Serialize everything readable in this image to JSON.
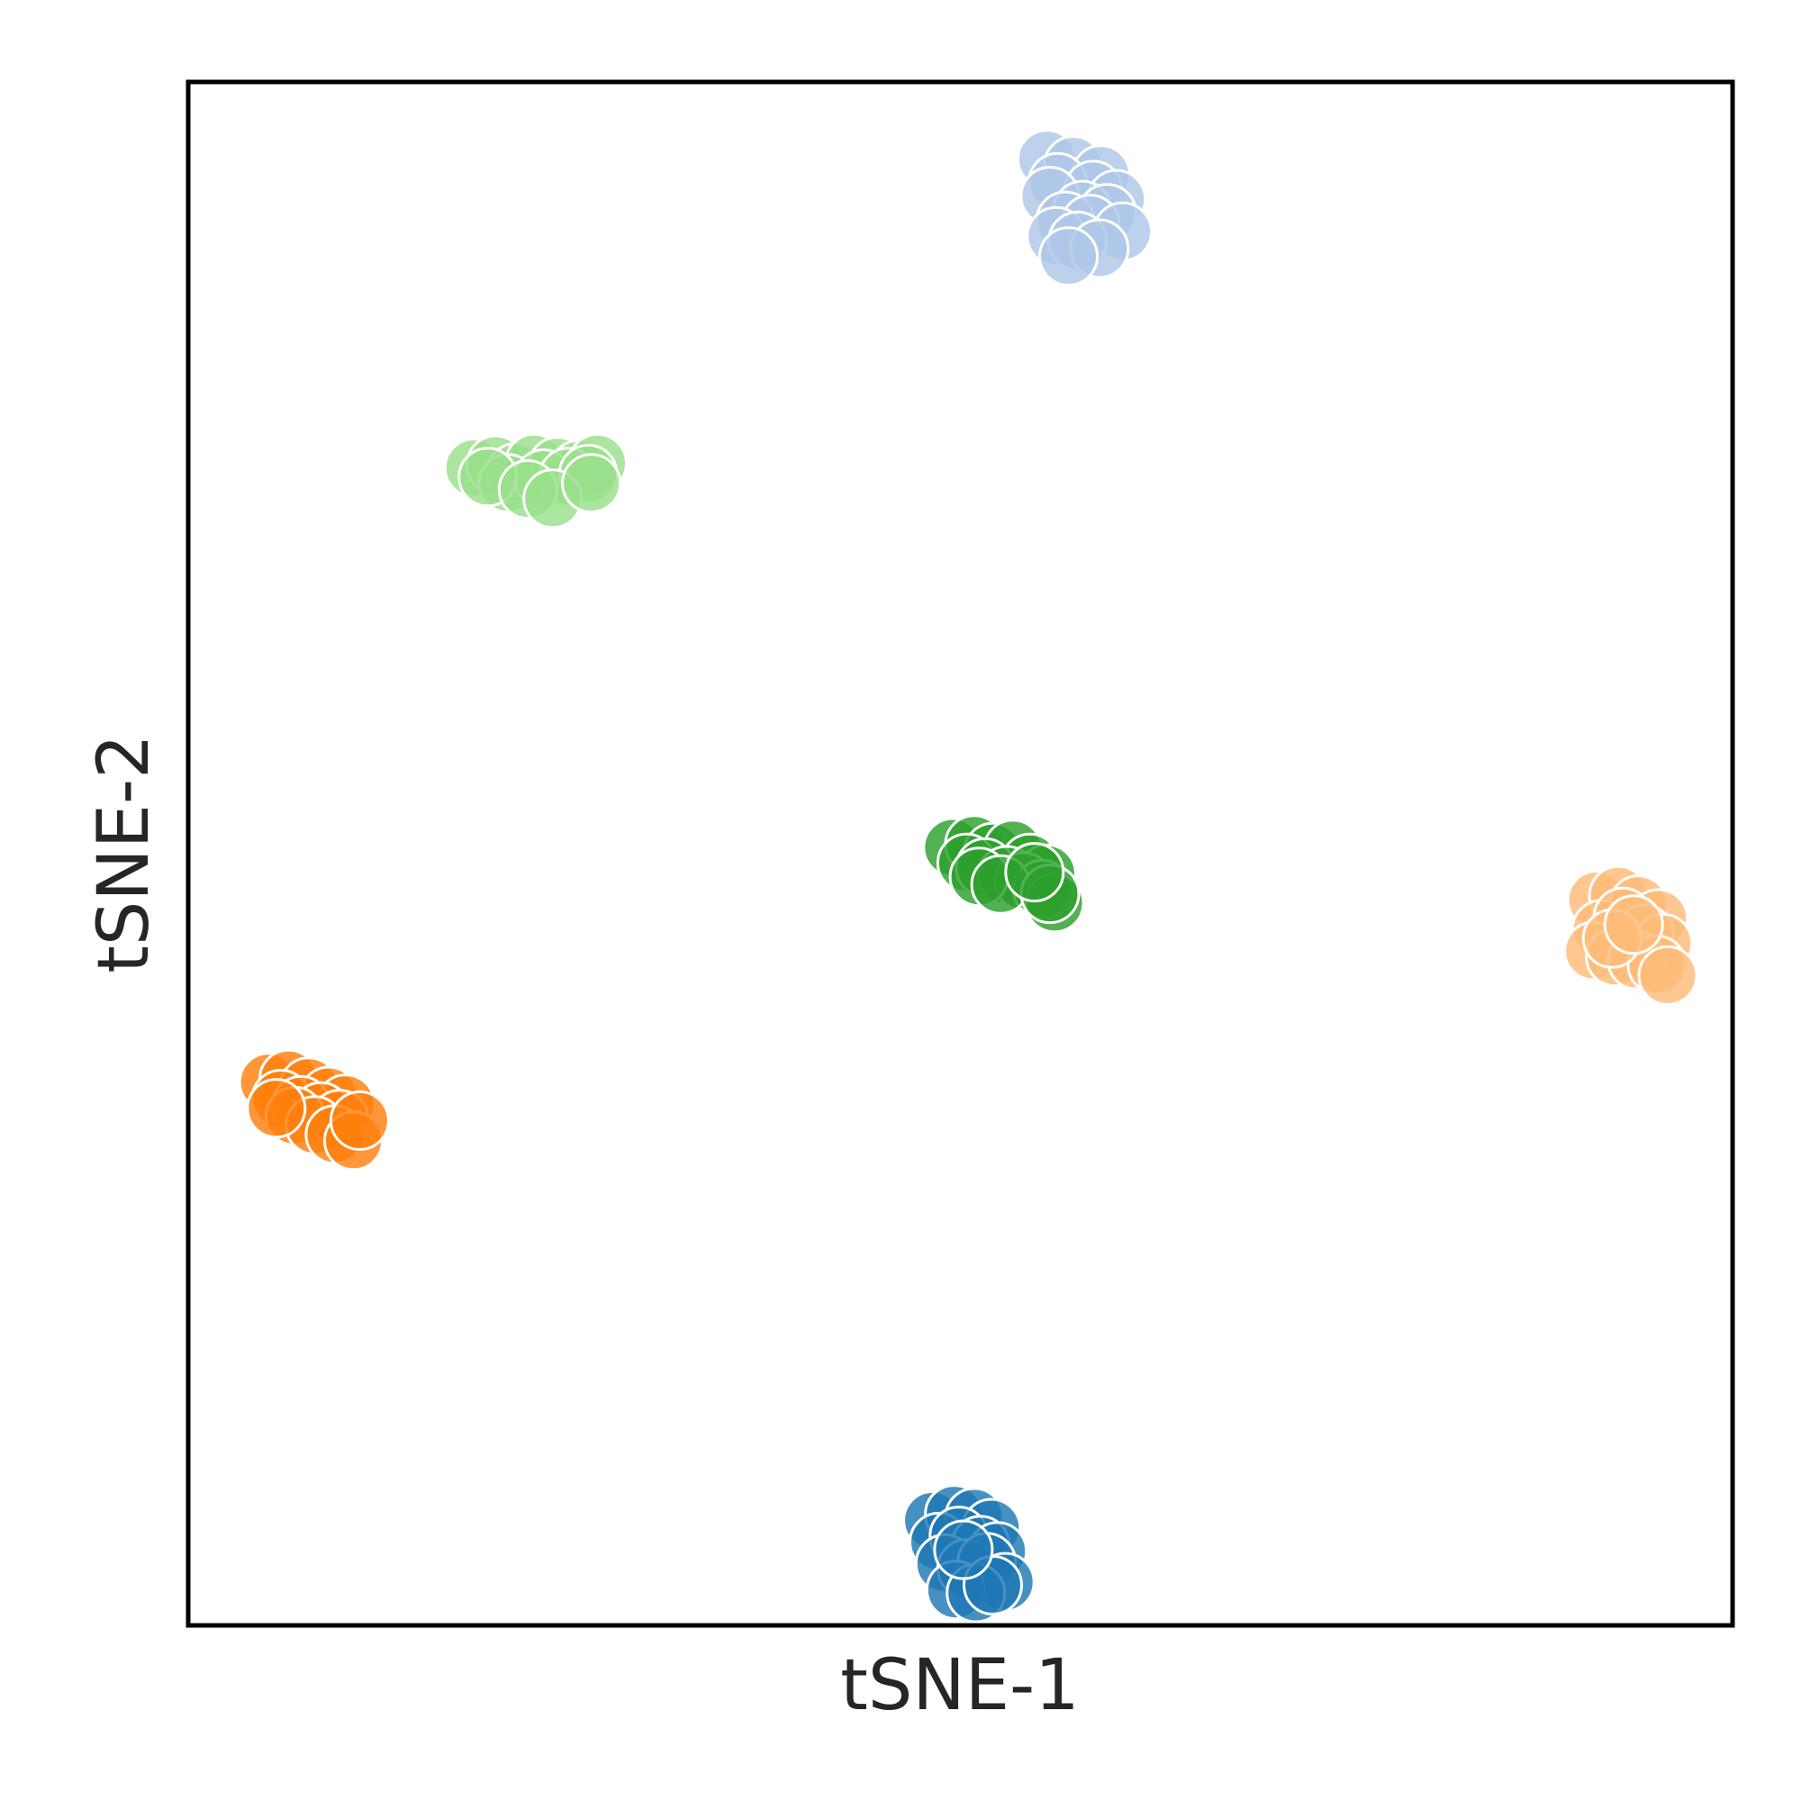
{
  "chart_data": {
    "type": "scatter",
    "title": "",
    "xlabel": "tSNE-1",
    "ylabel": "tSNE-2",
    "xlim": [
      -50,
      50
    ],
    "ylim": [
      -50,
      50
    ],
    "grid": false,
    "ticks": false,
    "marker_opacity": 0.82,
    "series": [
      {
        "color": "#aec7e8",
        "points": [
          [
            5.6,
            45.0
          ],
          [
            7.3,
            44.6
          ],
          [
            9.1,
            44.0
          ],
          [
            6.3,
            43.5
          ],
          [
            8.6,
            43.0
          ],
          [
            10.1,
            42.4
          ],
          [
            5.8,
            42.6
          ],
          [
            7.9,
            41.7
          ],
          [
            9.5,
            41.5
          ],
          [
            6.8,
            41.0
          ],
          [
            8.4,
            40.8
          ],
          [
            10.5,
            40.3
          ],
          [
            6.2,
            40.0
          ],
          [
            7.6,
            39.7
          ],
          [
            9.0,
            39.2
          ],
          [
            7.0,
            38.7
          ]
        ]
      },
      {
        "color": "#98df8a",
        "points": [
          [
            -31.5,
            25.0
          ],
          [
            -30.1,
            25.2
          ],
          [
            -28.8,
            24.7
          ],
          [
            -27.6,
            25.3
          ],
          [
            -26.1,
            25.1
          ],
          [
            -24.7,
            24.9
          ],
          [
            -23.5,
            25.3
          ],
          [
            -29.3,
            24.0
          ],
          [
            -27.0,
            24.3
          ],
          [
            -25.4,
            24.4
          ],
          [
            -24.1,
            24.6
          ],
          [
            -30.6,
            24.4
          ],
          [
            -28.0,
            23.6
          ],
          [
            -26.4,
            23.0
          ],
          [
            -23.9,
            24.0
          ]
        ]
      },
      {
        "color": "#2ca02c",
        "points": [
          [
            -0.5,
            0.4
          ],
          [
            0.9,
            0.6
          ],
          [
            2.1,
            0.1
          ],
          [
            3.4,
            0.3
          ],
          [
            4.5,
            -0.6
          ],
          [
            5.6,
            -1.3
          ],
          [
            0.4,
            -0.6
          ],
          [
            1.6,
            -0.9
          ],
          [
            3.0,
            -1.4
          ],
          [
            4.1,
            -1.8
          ],
          [
            5.3,
            -2.3
          ],
          [
            6.1,
            -3.2
          ],
          [
            1.2,
            -1.5
          ],
          [
            2.6,
            -2.0
          ],
          [
            5.8,
            -2.6
          ],
          [
            4.8,
            -1.2
          ]
        ]
      },
      {
        "color": "#ffbb78",
        "points": [
          [
            41.2,
            -3.0
          ],
          [
            42.6,
            -2.7
          ],
          [
            43.9,
            -3.3
          ],
          [
            45.2,
            -4.2
          ],
          [
            41.5,
            -4.9
          ],
          [
            42.9,
            -4.1
          ],
          [
            44.3,
            -5.2
          ],
          [
            45.5,
            -5.8
          ],
          [
            41.0,
            -6.3
          ],
          [
            42.4,
            -6.7
          ],
          [
            43.8,
            -6.9
          ],
          [
            45.1,
            -7.2
          ],
          [
            45.8,
            -7.9
          ],
          [
            42.2,
            -5.5
          ],
          [
            43.6,
            -4.6
          ]
        ]
      },
      {
        "color": "#ff7f0e",
        "points": [
          [
            -44.8,
            -14.8
          ],
          [
            -43.5,
            -14.6
          ],
          [
            -42.2,
            -15.1
          ],
          [
            -40.9,
            -15.7
          ],
          [
            -39.8,
            -16.2
          ],
          [
            -44.0,
            -15.9
          ],
          [
            -42.7,
            -16.3
          ],
          [
            -41.4,
            -16.7
          ],
          [
            -40.2,
            -17.2
          ],
          [
            -43.1,
            -17.0
          ],
          [
            -41.8,
            -17.6
          ],
          [
            -40.5,
            -18.2
          ],
          [
            -39.3,
            -18.6
          ],
          [
            -44.3,
            -16.5
          ],
          [
            -38.9,
            -17.3
          ]
        ]
      },
      {
        "color": "#1f77b4",
        "points": [
          [
            -1.8,
            -43.2
          ],
          [
            -0.4,
            -42.8
          ],
          [
            0.9,
            -43.0
          ],
          [
            2.0,
            -43.7
          ],
          [
            -1.4,
            -44.6
          ],
          [
            -0.1,
            -44.2
          ],
          [
            1.3,
            -44.8
          ],
          [
            2.4,
            -45.2
          ],
          [
            -1.0,
            -46.0
          ],
          [
            0.4,
            -46.3
          ],
          [
            1.7,
            -45.9
          ],
          [
            2.9,
            -47.2
          ],
          [
            -0.3,
            -47.7
          ],
          [
            1.0,
            -47.9
          ],
          [
            2.1,
            -47.4
          ],
          [
            0.2,
            -45.1
          ]
        ]
      }
    ]
  }
}
